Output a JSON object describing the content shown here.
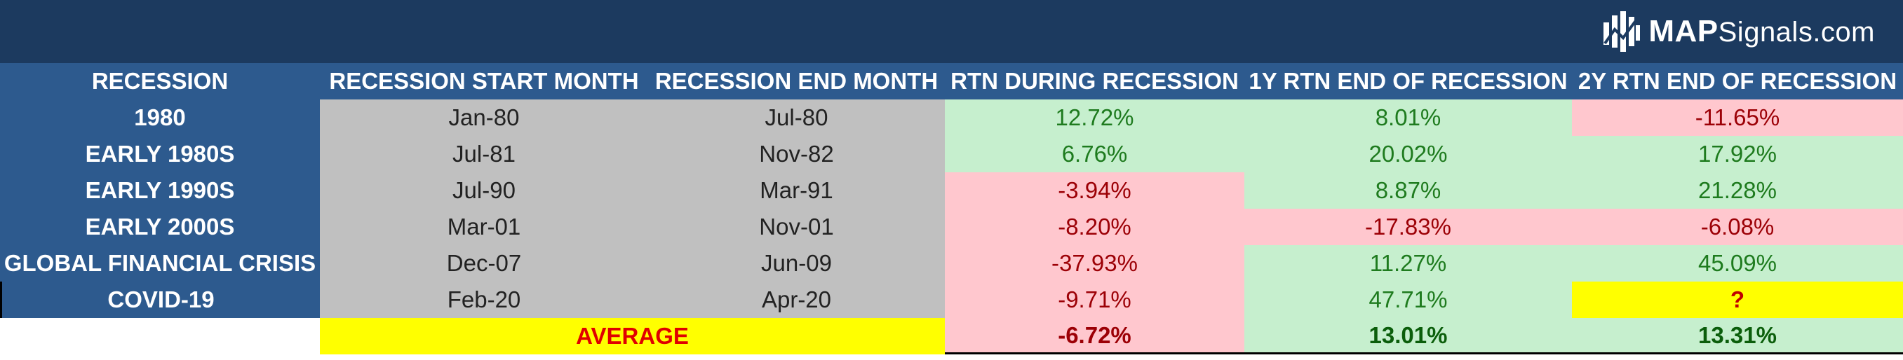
{
  "brand": {
    "bold": "MAP",
    "rest": "Signals.com"
  },
  "columns": [
    "RECESSION",
    "RECESSION START MONTH",
    "RECESSION END MONTH",
    "RTN DURING RECESSION",
    "1Y RTN END OF RECESSION",
    "2Y RTN END OF RECESSION"
  ],
  "rows": [
    {
      "name": "1980",
      "start": "Jan-80",
      "end": "Jul-80",
      "rtn": "12.72%",
      "y1": "8.01%",
      "y2": "-11.65%"
    },
    {
      "name": "EARLY 1980S",
      "start": "Jul-81",
      "end": "Nov-82",
      "rtn": "6.76%",
      "y1": "20.02%",
      "y2": "17.92%"
    },
    {
      "name": "EARLY 1990S",
      "start": "Jul-90",
      "end": "Mar-91",
      "rtn": "-3.94%",
      "y1": "8.87%",
      "y2": "21.28%"
    },
    {
      "name": "EARLY 2000S",
      "start": "Mar-01",
      "end": "Nov-01",
      "rtn": "-8.20%",
      "y1": "-17.83%",
      "y2": "-6.08%"
    },
    {
      "name": "GLOBAL FINANCIAL CRISIS",
      "start": "Dec-07",
      "end": "Jun-09",
      "rtn": "-37.93%",
      "y1": "11.27%",
      "y2": "45.09%"
    },
    {
      "name": "COVID-19",
      "start": "Feb-20",
      "end": "Apr-20",
      "rtn": "-9.71%",
      "y1": "47.71%",
      "y2": "?"
    }
  ],
  "average": {
    "label": "AVERAGE",
    "rtn": "-6.72%",
    "y1": "13.01%",
    "y2": "13.31%"
  },
  "colors": {
    "header_bg": "#2d5a8e",
    "banner_bg": "#1c3a5f",
    "date_bg": "#c0c0c0",
    "positive_bg": "#c6efce",
    "positive_text": "#1e7b1e",
    "negative_bg": "#ffc7ce",
    "negative_text": "#9c0006",
    "highlight_bg": "#ffff00",
    "highlight_text": "#e00000"
  }
}
